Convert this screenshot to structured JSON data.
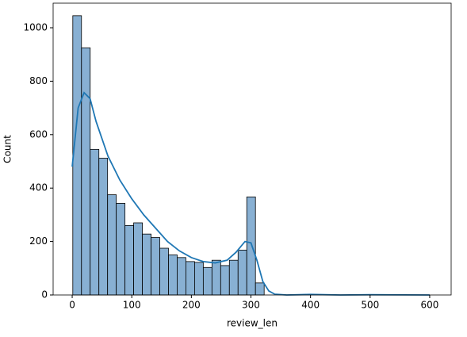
{
  "chart_data": {
    "type": "histogram",
    "xlabel": "review_len",
    "ylabel": "Count",
    "bins": [
      1,
      15.6,
      30.2,
      44.8,
      59.4,
      74,
      88.6,
      103.2,
      117.8,
      132.4,
      147,
      161.6,
      176.2,
      190.8,
      205.4,
      220,
      234.6,
      249.2,
      263.8,
      278.4,
      293,
      307.6,
      322.2
    ],
    "values": [
      1045,
      925,
      545,
      512,
      375,
      343,
      260,
      270,
      228,
      215,
      175,
      150,
      140,
      125,
      122,
      103,
      130,
      110,
      130,
      168,
      367,
      45
    ],
    "color": "#88b0d3",
    "edgecolor": "#000000",
    "kde": {
      "color": "#1f77b4",
      "x": [
        0,
        10,
        20,
        30,
        40,
        60,
        80,
        100,
        120,
        140,
        160,
        180,
        200,
        220,
        240,
        260,
        275,
        290,
        300,
        310,
        320,
        330,
        340,
        360,
        400,
        450,
        500,
        600
      ],
      "y": [
        480,
        700,
        757,
        735,
        650,
        520,
        430,
        360,
        300,
        250,
        200,
        165,
        140,
        125,
        120,
        130,
        160,
        200,
        195,
        130,
        50,
        15,
        3,
        0,
        2,
        0,
        1,
        0
      ]
    },
    "xlim": [
      -32,
      636
    ],
    "ylim": [
      0,
      1092
    ],
    "xticks": [
      0,
      100,
      200,
      300,
      400,
      500,
      600
    ],
    "yticks": [
      0,
      200,
      400,
      600,
      800,
      1000
    ]
  }
}
